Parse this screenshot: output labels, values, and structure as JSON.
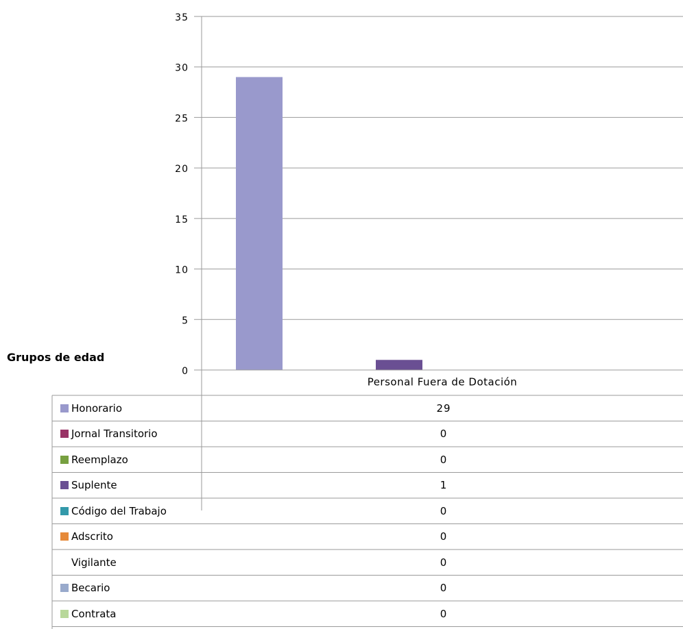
{
  "group_label": "Grupos de edad",
  "chart_data": {
    "type": "bar",
    "categories": [
      "Personal Fuera de Dotación"
    ],
    "ylim": [
      0,
      35
    ],
    "yticks": [
      0,
      5,
      10,
      15,
      20,
      25,
      30,
      35
    ],
    "grid": true,
    "series": [
      {
        "name": "Honorario",
        "color": "#9999cc",
        "values": [
          29
        ]
      },
      {
        "name": "Jornal Transitorio",
        "color": "#993366",
        "values": [
          0
        ]
      },
      {
        "name": "Reemplazo",
        "color": "#77a040",
        "values": [
          0
        ]
      },
      {
        "name": "Suplente",
        "color": "#6a4f93",
        "values": [
          1
        ]
      },
      {
        "name": "Código del Trabajo",
        "color": "#3399aa",
        "values": [
          0
        ]
      },
      {
        "name": "Adscrito",
        "color": "#e68a3a",
        "values": [
          0
        ]
      },
      {
        "name": "Vigilante",
        "color": "#ffffff",
        "values": [
          0
        ]
      },
      {
        "name": "Becario",
        "color": "#99aacc",
        "values": [
          0
        ]
      },
      {
        "name": "Contrata",
        "color": "#b8d89a",
        "values": [
          0
        ]
      }
    ],
    "data_table": [
      {
        "label": "Honorario",
        "value": "29"
      },
      {
        "label": "Jornal Transitorio",
        "value": "0"
      },
      {
        "label": "Reemplazo",
        "value": "0"
      },
      {
        "label": "Suplente",
        "value": "1"
      },
      {
        "label": "Código del Trabajo",
        "value": "0"
      },
      {
        "label": "Adscrito",
        "value": "0"
      },
      {
        "label": "Vigilante",
        "value": "0"
      },
      {
        "label": "Becario",
        "value": "0"
      },
      {
        "label": "Contrata",
        "value": "0"
      }
    ]
  }
}
